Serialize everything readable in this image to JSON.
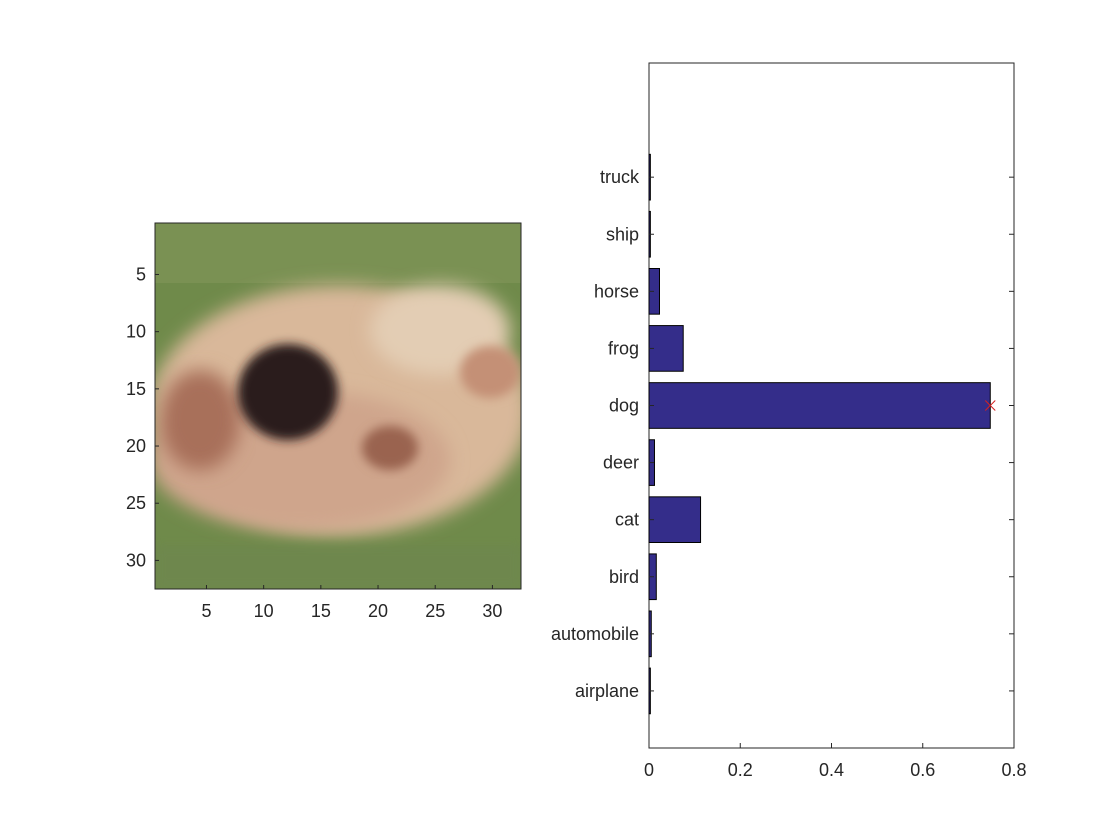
{
  "image_panel": {
    "xticks": [
      "5",
      "10",
      "15",
      "20",
      "25",
      "30"
    ],
    "yticks": [
      "5",
      "10",
      "15",
      "20",
      "25",
      "30"
    ],
    "content": "pixelated 32x32 photo of a light-colored dog with a dark ear on a green grass background"
  },
  "chart_data": {
    "type": "bar",
    "orientation": "horizontal",
    "categories": [
      "airplane",
      "automobile",
      "bird",
      "cat",
      "deer",
      "dog",
      "frog",
      "horse",
      "ship",
      "truck"
    ],
    "values": [
      0.003,
      0.005,
      0.016,
      0.113,
      0.012,
      0.748,
      0.075,
      0.023,
      0.003,
      0.003
    ],
    "xlim": [
      0,
      0.8
    ],
    "xticks": [
      "0",
      "0.2",
      "0.4",
      "0.6",
      "0.8"
    ],
    "bar_color": "#342d8a",
    "highlight": {
      "category": "dog",
      "value": 0.748,
      "marker": "x",
      "color": "#d42020"
    },
    "grid": false,
    "title": "",
    "xlabel": "",
    "ylabel": ""
  }
}
